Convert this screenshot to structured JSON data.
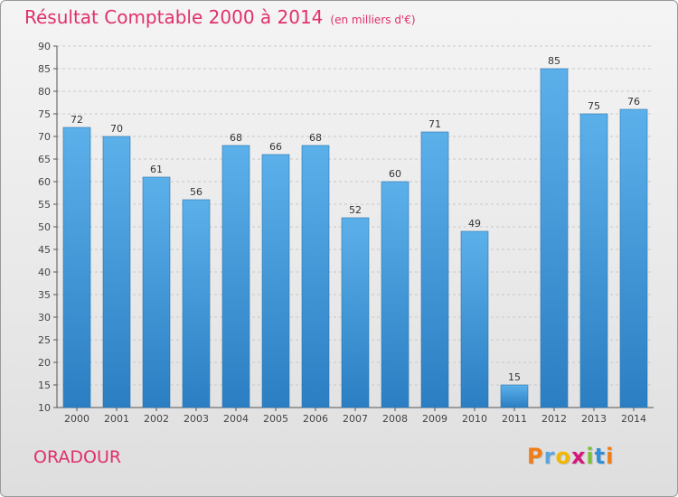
{
  "header": {
    "title": "Résultat Comptable 2000 à 2014",
    "subtitle": "(en milliers d'€)"
  },
  "commune": "ORADOUR",
  "brand": {
    "letters": [
      "P",
      "r",
      "o",
      "x",
      "i",
      "t",
      "i"
    ],
    "colors": [
      "#f07d18",
      "#5aa5dd",
      "#f2b800",
      "#d6177a",
      "#7fbf3a",
      "#2f8fd8",
      "#f07d18"
    ]
  },
  "colors": {
    "bar_top": "#5cb0ea",
    "bar_bottom": "#2b7ec2",
    "title": "#e0306b"
  },
  "chart_data": {
    "type": "bar",
    "title": "Résultat Comptable 2000 à 2014",
    "subtitle": "(en milliers d'€)",
    "categories": [
      "2000",
      "2001",
      "2002",
      "2003",
      "2004",
      "2005",
      "2006",
      "2007",
      "2008",
      "2009",
      "2010",
      "2011",
      "2012",
      "2013",
      "2014"
    ],
    "values": [
      72,
      70,
      61,
      56,
      68,
      66,
      68,
      52,
      60,
      71,
      49,
      15,
      85,
      75,
      76
    ],
    "ylim": [
      10,
      90
    ],
    "yticks": [
      10,
      15,
      20,
      25,
      30,
      35,
      40,
      45,
      50,
      55,
      60,
      65,
      70,
      75,
      80,
      85,
      90
    ],
    "xlabel": "",
    "ylabel": "",
    "grid": true
  }
}
